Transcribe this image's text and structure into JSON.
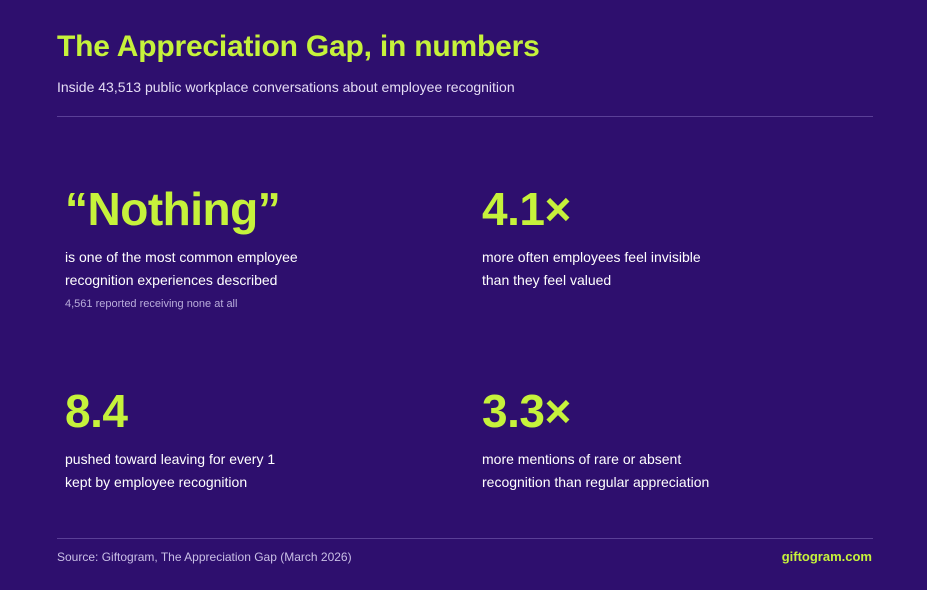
{
  "header": {
    "title": "The Appreciation Gap, in numbers",
    "subtitle": "Inside 43,513 public workplace conversations about employee recognition"
  },
  "stats": [
    {
      "value": "“Nothing”",
      "desc_line1": "is one of the most common employee",
      "desc_line2": "recognition experiences described",
      "note": "4,561 reported receiving none at all"
    },
    {
      "value": "4.1×",
      "desc_line1": "more often employees feel invisible",
      "desc_line2": "than they feel valued"
    },
    {
      "value": "8.4",
      "desc_line1": "pushed toward leaving for every 1",
      "desc_line2": "kept by employee recognition"
    },
    {
      "value": "3.3×",
      "desc_line1": "more mentions of rare or absent",
      "desc_line2": "recognition than regular appreciation"
    }
  ],
  "footer": {
    "source": "Source: Giftogram, The Appreciation Gap (March 2026)",
    "brand": "giftogram.com"
  },
  "colors": {
    "background": "#2e0f6e",
    "accent": "#c6f23b",
    "text": "#ffffff"
  }
}
